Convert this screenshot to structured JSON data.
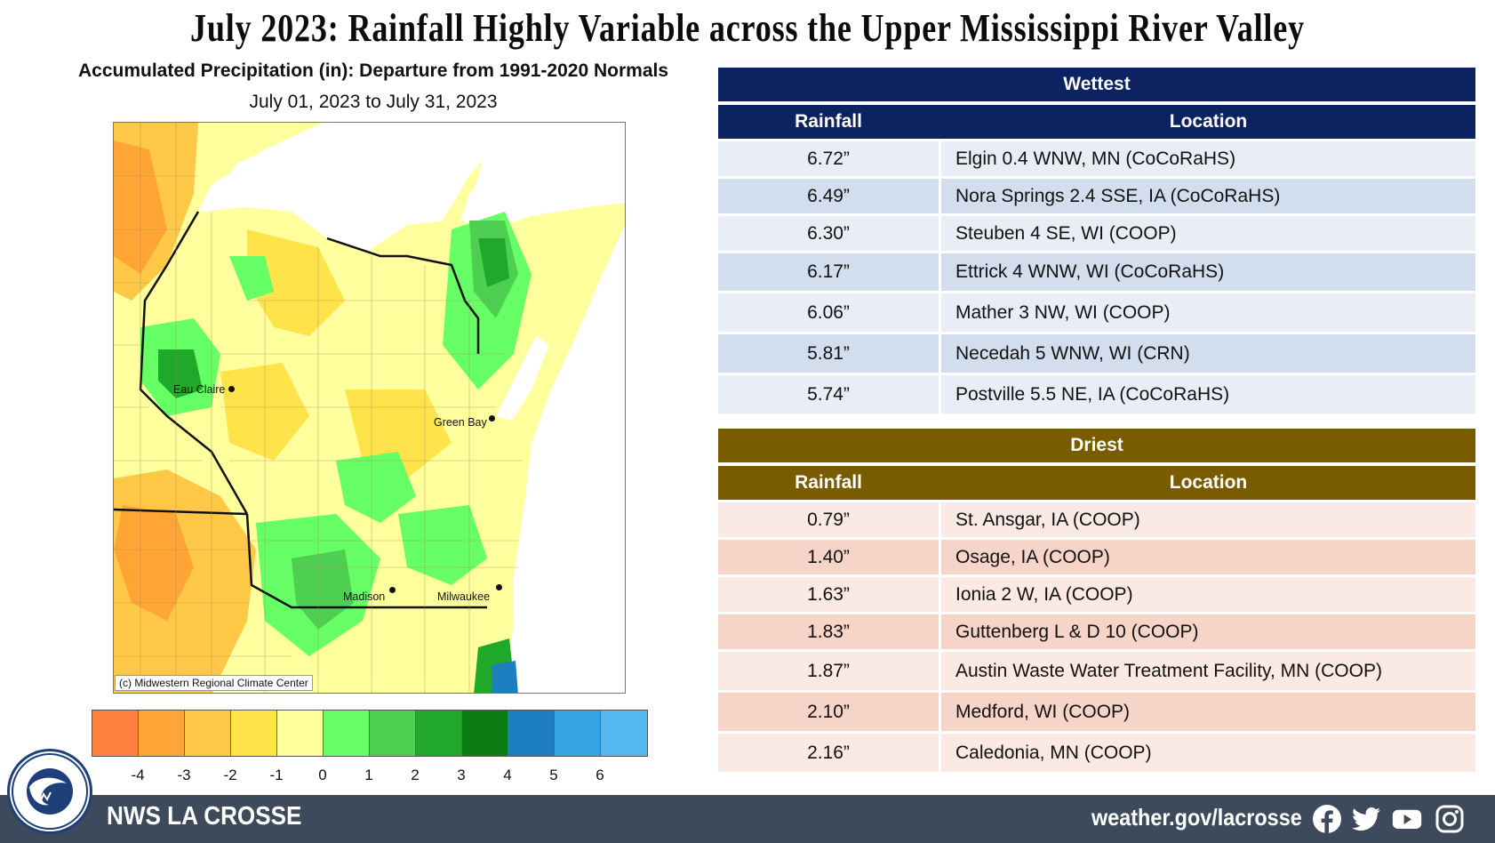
{
  "title": "July 2023:  Rainfall Highly Variable across the Upper Mississippi River Valley",
  "map": {
    "title": "Accumulated Precipitation (in): Departure from 1991-2020 Normals",
    "dates": "July 01, 2023 to July 31, 2023",
    "copyright": "(c) Midwestern Regional Climate Center",
    "cities": [
      "Eau Claire",
      "Green Bay",
      "Madison",
      "Milwaukee"
    ]
  },
  "legend": {
    "colors": [
      "#ff7f3f",
      "#ffa535",
      "#ffc847",
      "#ffe34a",
      "#ffff9e",
      "#66ff66",
      "#4fcf52",
      "#1fa82a",
      "#0b7d12",
      "#1e7fc0",
      "#36a4e4",
      "#56b8f0"
    ],
    "ticks": [
      "-4",
      "-3",
      "-2",
      "-1",
      "0",
      "1",
      "2",
      "3",
      "4",
      "5",
      "6"
    ]
  },
  "wettest": {
    "header": "Wettest",
    "col_rainfall": "Rainfall",
    "col_location": "Location",
    "header_color": "#0d2260",
    "row_colors": [
      "#e9eef6",
      "#d2deed"
    ],
    "rows": [
      {
        "rainfall": "6.72”",
        "location": "Elgin 0.4 WNW, MN (CoCoRaHS)"
      },
      {
        "rainfall": "6.49”",
        "location": "Nora Springs 2.4 SSE, IA (CoCoRaHS)"
      },
      {
        "rainfall": "6.30”",
        "location": "Steuben 4 SE, WI (COOP)"
      },
      {
        "rainfall": "6.17”",
        "location": "Ettrick 4 WNW, WI (CoCoRaHS)"
      },
      {
        "rainfall": "6.06”",
        "location": "Mather 3 NW, WI (COOP)"
      },
      {
        "rainfall": "5.81”",
        "location": "Necedah 5 WNW, WI (CRN)"
      },
      {
        "rainfall": "5.74”",
        "location": "Postville 5.5 NE, IA (CoCoRaHS)"
      }
    ]
  },
  "driest": {
    "header": "Driest",
    "col_rainfall": "Rainfall",
    "col_location": "Location",
    "header_color": "#7a5c00",
    "row_colors": [
      "#fbe9e3",
      "#f6d4c8"
    ],
    "rows": [
      {
        "rainfall": "0.79”",
        "location": "St. Ansgar, IA (COOP)"
      },
      {
        "rainfall": "1.40”",
        "location": "Osage, IA (COOP)"
      },
      {
        "rainfall": "1.63”",
        "location": "Ionia 2 W, IA (COOP)"
      },
      {
        "rainfall": "1.83”",
        "location": "Guttenberg L & D 10 (COOP)"
      },
      {
        "rainfall": "1.87”",
        "location": "Austin Waste Water Treatment Facility, MN (COOP)"
      },
      {
        "rainfall": "2.10”",
        "location": "Medford, WI (COOP)"
      },
      {
        "rainfall": "2.16”",
        "location": "Caledonia, MN (COOP)"
      }
    ]
  },
  "footer": {
    "brand": "NWS LA CROSSE",
    "url": "weather.gov/lacrosse",
    "social": [
      "facebook-icon",
      "twitter-icon",
      "youtube-icon",
      "instagram-icon"
    ]
  }
}
